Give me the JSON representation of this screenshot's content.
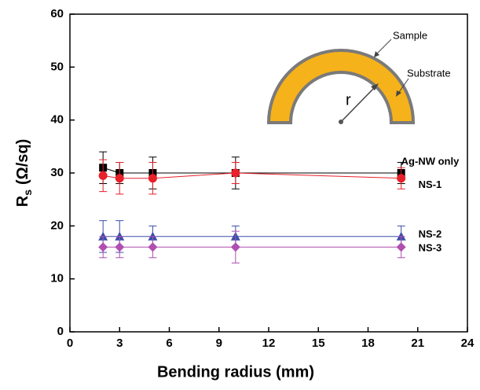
{
  "chart_data": {
    "type": "line",
    "x_label": "Bending radius (mm)",
    "y_label": {
      "main": "R",
      "sub": "s",
      "unit": "(Ω/sq)"
    },
    "xlim": [
      0,
      24
    ],
    "xticks": [
      0,
      3,
      6,
      9,
      12,
      15,
      18,
      21,
      24
    ],
    "ylim": [
      0,
      60
    ],
    "yticks": [
      0,
      10,
      20,
      30,
      40,
      50,
      60
    ],
    "x": [
      2,
      3,
      5,
      10,
      20
    ],
    "series": [
      {
        "name": "Ag-NW only",
        "color": "#000000",
        "marker": "square",
        "values": [
          31,
          30,
          30,
          30,
          30
        ],
        "errors": [
          3,
          2,
          3,
          3,
          2
        ]
      },
      {
        "name": "NS-1",
        "color": "#e8202a",
        "marker": "circle",
        "values": [
          29.5,
          29,
          29,
          30,
          29
        ],
        "errors": [
          3,
          3,
          3,
          2,
          2
        ]
      },
      {
        "name": "NS-2",
        "color": "#3a4ea8",
        "marker": "triangle",
        "values": [
          18,
          18,
          18,
          18,
          18
        ],
        "errors": [
          3,
          3,
          2,
          2,
          2
        ]
      },
      {
        "name": "NS-3",
        "color": "#b04fb0",
        "marker": "diamond",
        "values": [
          16,
          16,
          16,
          16,
          16
        ],
        "errors": [
          2,
          2,
          2,
          3,
          2
        ]
      }
    ],
    "inset": {
      "sample": "Sample",
      "substrate": "Substrate",
      "radius": "r"
    }
  }
}
